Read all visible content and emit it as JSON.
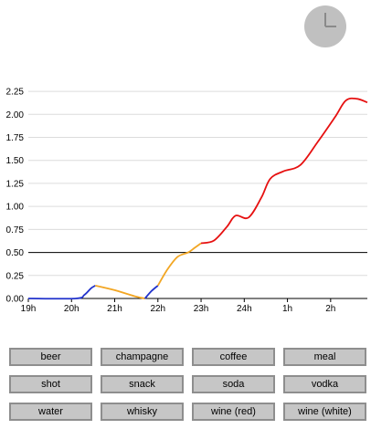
{
  "clock": {
    "icon": "clock-icon",
    "color": "#c0c0c0",
    "hand_color": "#8a8a8a"
  },
  "chart_data": {
    "type": "line",
    "title": "",
    "xlabel": "",
    "ylabel": "",
    "x_ticks": [
      "19h",
      "20h",
      "21h",
      "22h",
      "23h",
      "24h",
      "1h",
      "2h"
    ],
    "xlim": [
      19.0,
      26.85
    ],
    "ylim": [
      0,
      2.35
    ],
    "y_ticks": [
      "0.00",
      "0.25",
      "0.50",
      "0.75",
      "1.00",
      "1.25",
      "1.50",
      "1.75",
      "2.00",
      "2.25"
    ],
    "threshold": 0.5,
    "grid": true,
    "series": [
      {
        "color": "#2233cc",
        "x": [
          19.0,
          20.1,
          20.3,
          20.45,
          20.55
        ],
        "y": [
          0.0,
          0.0,
          0.04,
          0.11,
          0.14
        ]
      },
      {
        "color": "#f2a623",
        "x": [
          20.55,
          21.0,
          21.5,
          21.7
        ],
        "y": [
          0.14,
          0.09,
          0.02,
          0.0
        ]
      },
      {
        "color": "#2233cc",
        "x": [
          21.7,
          21.85,
          22.0
        ],
        "y": [
          0.0,
          0.08,
          0.14
        ]
      },
      {
        "color": "#f2a623",
        "x": [
          22.0,
          22.2,
          22.45,
          22.7,
          22.85,
          23.0
        ],
        "y": [
          0.14,
          0.3,
          0.45,
          0.5,
          0.55,
          0.6
        ]
      },
      {
        "color": "#e61010",
        "x": [
          23.0,
          23.3,
          23.6,
          23.8,
          24.1,
          24.4,
          24.6,
          24.9,
          25.3,
          25.7,
          26.1,
          26.35,
          26.6,
          26.85
        ],
        "y": [
          0.6,
          0.63,
          0.78,
          0.9,
          0.88,
          1.1,
          1.3,
          1.38,
          1.45,
          1.7,
          1.97,
          2.15,
          2.17,
          2.13
        ]
      }
    ]
  },
  "buttons": [
    "beer",
    "champagne",
    "coffee",
    "meal",
    "shot",
    "snack",
    "soda",
    "vodka",
    "water",
    "whisky",
    "wine (red)",
    "wine (white)"
  ]
}
